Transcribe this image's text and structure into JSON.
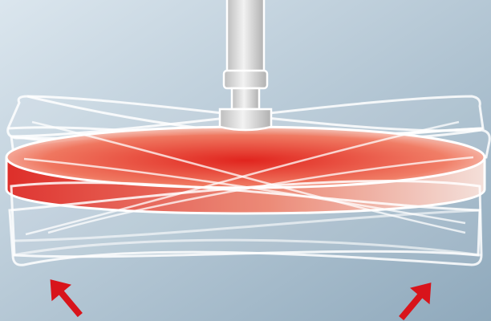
{
  "diagram": {
    "subject": "oscillating-disc-on-shaft",
    "colors": {
      "background_light": "#dbe6ee",
      "background_dark": "#8fa9bc",
      "disc_hot": "#e0201a",
      "disc_mid": "#f07a62",
      "disc_pale": "#fbe3db",
      "outline": "#ffffff",
      "shaft": "#d8d8d8",
      "arrow": "#d8141b"
    },
    "icons": [
      "arrow-up-right-icon",
      "arrow-up-right-icon"
    ]
  }
}
